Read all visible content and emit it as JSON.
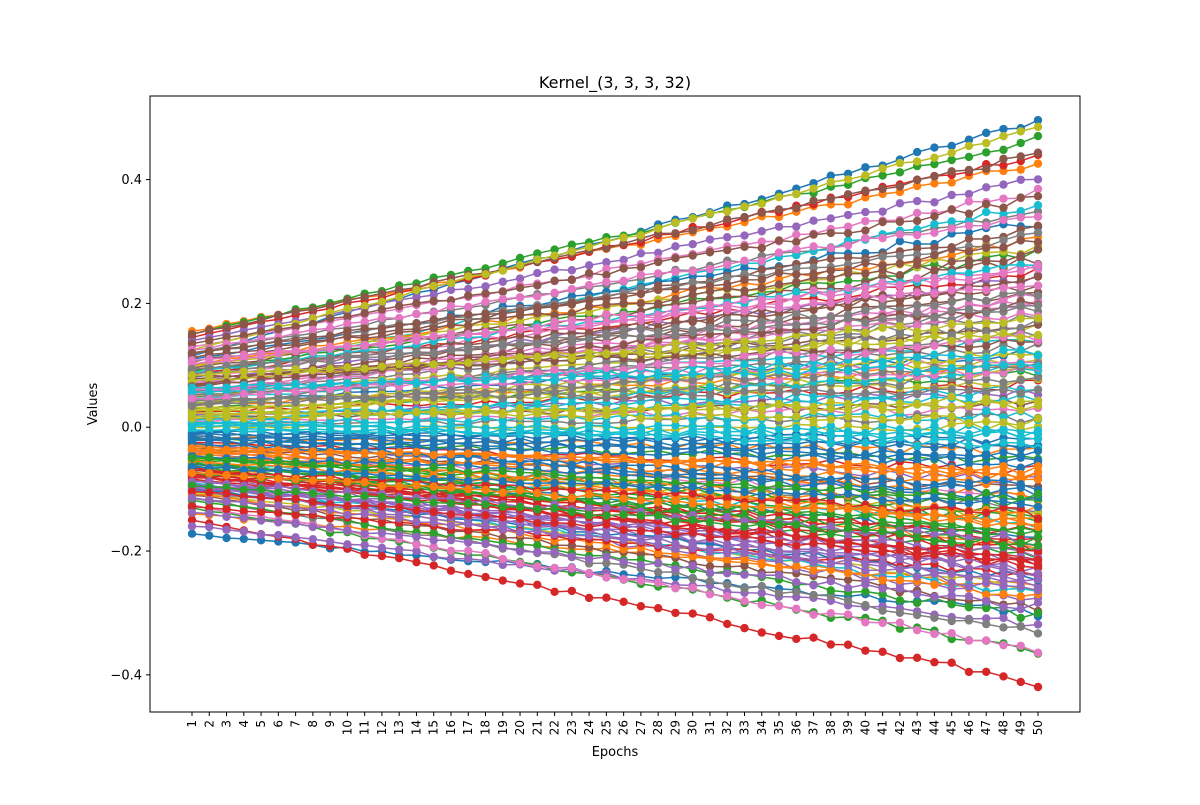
{
  "chart_data": {
    "type": "line",
    "title": "Kernel_(3, 3, 3, 32)",
    "xlabel": "Epochs",
    "ylabel": "Values",
    "x": [
      1,
      2,
      3,
      4,
      5,
      6,
      7,
      8,
      9,
      10,
      11,
      12,
      13,
      14,
      15,
      16,
      17,
      18,
      19,
      20,
      21,
      22,
      23,
      24,
      25,
      26,
      27,
      28,
      29,
      30,
      31,
      32,
      33,
      34,
      35,
      36,
      37,
      38,
      39,
      40,
      41,
      42,
      43,
      44,
      45,
      46,
      47,
      48,
      49,
      50
    ],
    "xlim": [
      1,
      50
    ],
    "ylim": [
      -0.46,
      0.535
    ],
    "yticks": [
      -0.4,
      -0.2,
      0.0,
      0.2,
      0.4
    ],
    "ytick_labels": [
      "−0.4",
      "−0.2",
      "0.0",
      "0.2",
      "0.4"
    ],
    "marker": "circle",
    "grid": false,
    "legend": "none",
    "color_cycle": [
      "#1f77b4",
      "#ff7f0e",
      "#2ca02c",
      "#d62728",
      "#9467bd",
      "#8c564b",
      "#e377c2",
      "#7f7f7f",
      "#bcbd22",
      "#17becf"
    ],
    "series": [
      {
        "start": 0.115,
        "end": 0.495,
        "jitter": 0.004
      },
      {
        "start": 0.155,
        "end": 0.425,
        "jitter": 0.004
      },
      {
        "start": 0.15,
        "end": 0.465,
        "jitter": 0.004
      },
      {
        "start": 0.145,
        "end": 0.44,
        "jitter": 0.004
      },
      {
        "start": 0.14,
        "end": 0.4,
        "jitter": 0.004
      },
      {
        "start": 0.15,
        "end": 0.44,
        "jitter": 0.004
      },
      {
        "start": 0.13,
        "end": 0.38,
        "jitter": 0.004
      },
      {
        "start": 0.12,
        "end": 0.35,
        "jitter": 0.004
      },
      {
        "start": 0.125,
        "end": 0.48,
        "jitter": 0.004
      },
      {
        "start": 0.08,
        "end": 0.36,
        "jitter": 0.004
      },
      {
        "start": -0.172,
        "end": -0.3,
        "jitter": 0.005
      },
      {
        "start": -0.14,
        "end": -0.26,
        "jitter": 0.005
      },
      {
        "start": -0.13,
        "end": -0.36,
        "jitter": 0.005
      },
      {
        "start": -0.15,
        "end": -0.413,
        "jitter": 0.005
      },
      {
        "start": -0.16,
        "end": -0.32,
        "jitter": 0.005
      },
      {
        "start": -0.11,
        "end": -0.29,
        "jitter": 0.005
      },
      {
        "start": -0.125,
        "end": -0.36,
        "jitter": 0.005
      },
      {
        "start": -0.115,
        "end": -0.33,
        "jitter": 0.005
      },
      {
        "start": -0.105,
        "end": -0.26,
        "jitter": 0.005
      },
      {
        "start": -0.09,
        "end": -0.27,
        "jitter": 0.005
      },
      {
        "start": 0.11,
        "end": 0.33,
        "jitter": 0.006
      },
      {
        "start": 0.1,
        "end": 0.3,
        "jitter": 0.006
      },
      {
        "start": 0.09,
        "end": 0.28,
        "jitter": 0.006
      },
      {
        "start": 0.085,
        "end": 0.25,
        "jitter": 0.006
      },
      {
        "start": 0.075,
        "end": 0.24,
        "jitter": 0.006
      },
      {
        "start": 0.07,
        "end": 0.22,
        "jitter": 0.006
      },
      {
        "start": 0.06,
        "end": 0.2,
        "jitter": 0.006
      },
      {
        "start": 0.055,
        "end": 0.18,
        "jitter": 0.006
      },
      {
        "start": 0.05,
        "end": 0.16,
        "jitter": 0.006
      },
      {
        "start": 0.045,
        "end": 0.14,
        "jitter": 0.006
      },
      {
        "start": 0.04,
        "end": 0.12,
        "jitter": 0.006
      },
      {
        "start": 0.035,
        "end": 0.1,
        "jitter": 0.006
      },
      {
        "start": 0.03,
        "end": 0.085,
        "jitter": 0.006
      },
      {
        "start": 0.025,
        "end": 0.07,
        "jitter": 0.006
      },
      {
        "start": 0.02,
        "end": 0.055,
        "jitter": 0.006
      },
      {
        "start": 0.015,
        "end": 0.04,
        "jitter": 0.006
      },
      {
        "start": 0.01,
        "end": 0.03,
        "jitter": 0.006
      },
      {
        "start": 0.005,
        "end": 0.015,
        "jitter": 0.006
      },
      {
        "start": 0.0,
        "end": 0.0,
        "jitter": 0.006
      },
      {
        "start": -0.005,
        "end": -0.01,
        "jitter": 0.006
      },
      {
        "start": -0.01,
        "end": -0.025,
        "jitter": 0.006
      },
      {
        "start": -0.015,
        "end": -0.04,
        "jitter": 0.006
      },
      {
        "start": -0.02,
        "end": -0.055,
        "jitter": 0.006
      },
      {
        "start": -0.025,
        "end": -0.07,
        "jitter": 0.006
      },
      {
        "start": -0.03,
        "end": -0.085,
        "jitter": 0.006
      },
      {
        "start": -0.035,
        "end": -0.1,
        "jitter": 0.006
      },
      {
        "start": -0.04,
        "end": -0.115,
        "jitter": 0.006
      },
      {
        "start": -0.045,
        "end": -0.13,
        "jitter": 0.006
      },
      {
        "start": -0.05,
        "end": -0.145,
        "jitter": 0.006
      },
      {
        "start": -0.055,
        "end": -0.16,
        "jitter": 0.006
      },
      {
        "start": -0.06,
        "end": -0.175,
        "jitter": 0.006
      },
      {
        "start": -0.065,
        "end": -0.19,
        "jitter": 0.006
      },
      {
        "start": -0.07,
        "end": -0.205,
        "jitter": 0.006
      },
      {
        "start": -0.075,
        "end": -0.22,
        "jitter": 0.006
      },
      {
        "start": -0.08,
        "end": -0.235,
        "jitter": 0.006
      },
      {
        "start": 0.095,
        "end": 0.27,
        "jitter": 0.006
      },
      {
        "start": 0.065,
        "end": 0.21,
        "jitter": 0.006
      },
      {
        "start": 0.048,
        "end": 0.15,
        "jitter": 0.006
      },
      {
        "start": 0.028,
        "end": 0.09,
        "jitter": 0.006
      },
      {
        "start": 0.012,
        "end": 0.05,
        "jitter": 0.006
      },
      {
        "start": -0.012,
        "end": -0.035,
        "jitter": 0.006
      },
      {
        "start": -0.028,
        "end": -0.08,
        "jitter": 0.006
      },
      {
        "start": -0.048,
        "end": -0.14,
        "jitter": 0.006
      },
      {
        "start": -0.068,
        "end": -0.2,
        "jitter": 0.006
      },
      {
        "start": -0.085,
        "end": -0.25,
        "jitter": 0.006
      },
      {
        "start": 0.105,
        "end": 0.32,
        "jitter": 0.006
      },
      {
        "start": 0.08,
        "end": 0.26,
        "jitter": 0.006
      },
      {
        "start": 0.058,
        "end": 0.19,
        "jitter": 0.006
      },
      {
        "start": 0.038,
        "end": 0.11,
        "jitter": 0.006
      },
      {
        "start": 0.018,
        "end": 0.06,
        "jitter": 0.006
      },
      {
        "start": -0.018,
        "end": -0.05,
        "jitter": 0.006
      },
      {
        "start": -0.038,
        "end": -0.11,
        "jitter": 0.006
      },
      {
        "start": -0.058,
        "end": -0.17,
        "jitter": 0.006
      },
      {
        "start": -0.078,
        "end": -0.215,
        "jitter": 0.006
      },
      {
        "start": -0.095,
        "end": -0.28,
        "jitter": 0.006
      },
      {
        "start": 0.092,
        "end": 0.23,
        "jitter": 0.006
      },
      {
        "start": 0.072,
        "end": 0.185,
        "jitter": 0.006
      },
      {
        "start": 0.052,
        "end": 0.13,
        "jitter": 0.006
      },
      {
        "start": 0.032,
        "end": 0.075,
        "jitter": 0.006
      },
      {
        "start": 0.008,
        "end": 0.02,
        "jitter": 0.006
      },
      {
        "start": -0.008,
        "end": -0.02,
        "jitter": 0.006
      },
      {
        "start": -0.032,
        "end": -0.075,
        "jitter": 0.006
      },
      {
        "start": -0.052,
        "end": -0.125,
        "jitter": 0.006
      },
      {
        "start": -0.072,
        "end": -0.18,
        "jitter": 0.006
      },
      {
        "start": -0.092,
        "end": -0.23,
        "jitter": 0.006
      },
      {
        "start": 0.135,
        "end": 0.37,
        "jitter": 0.005
      },
      {
        "start": 0.125,
        "end": 0.345,
        "jitter": 0.005
      },
      {
        "start": 0.118,
        "end": 0.31,
        "jitter": 0.005
      },
      {
        "start": 0.098,
        "end": 0.29,
        "jitter": 0.005
      },
      {
        "start": 0.088,
        "end": 0.265,
        "jitter": 0.005
      },
      {
        "start": -0.1,
        "end": -0.245,
        "jitter": 0.005
      },
      {
        "start": -0.108,
        "end": -0.275,
        "jitter": 0.005
      },
      {
        "start": -0.118,
        "end": -0.305,
        "jitter": 0.005
      },
      {
        "start": -0.128,
        "end": -0.24,
        "jitter": 0.005
      },
      {
        "start": -0.138,
        "end": -0.29,
        "jitter": 0.005
      },
      {
        "start": 0.078,
        "end": 0.16,
        "jitter": 0.006
      },
      {
        "start": 0.062,
        "end": 0.11,
        "jitter": 0.006
      },
      {
        "start": 0.042,
        "end": 0.08,
        "jitter": 0.006
      },
      {
        "start": 0.022,
        "end": 0.035,
        "jitter": 0.006
      },
      {
        "start": 0.002,
        "end": -0.005,
        "jitter": 0.006
      },
      {
        "start": -0.022,
        "end": -0.06,
        "jitter": 0.006
      },
      {
        "start": -0.042,
        "end": -0.09,
        "jitter": 0.006
      },
      {
        "start": -0.062,
        "end": -0.15,
        "jitter": 0.006
      },
      {
        "start": -0.082,
        "end": -0.17,
        "jitter": 0.006
      },
      {
        "start": -0.098,
        "end": -0.205,
        "jitter": 0.006
      },
      {
        "start": 0.068,
        "end": 0.24,
        "jitter": 0.006
      },
      {
        "start": 0.054,
        "end": 0.205,
        "jitter": 0.006
      },
      {
        "start": 0.036,
        "end": 0.17,
        "jitter": 0.006
      },
      {
        "start": 0.016,
        "end": 0.125,
        "jitter": 0.006
      },
      {
        "start": 0.004,
        "end": 0.095,
        "jitter": 0.006
      },
      {
        "start": -0.016,
        "end": -0.12,
        "jitter": 0.006
      },
      {
        "start": -0.036,
        "end": -0.16,
        "jitter": 0.006
      },
      {
        "start": -0.056,
        "end": -0.195,
        "jitter": 0.006
      },
      {
        "start": -0.066,
        "end": -0.225,
        "jitter": 0.006
      },
      {
        "start": -0.086,
        "end": -0.265,
        "jitter": 0.006
      },
      {
        "start": 0.082,
        "end": 0.14,
        "jitter": 0.006
      },
      {
        "start": 0.06,
        "end": 0.09,
        "jitter": 0.006
      },
      {
        "start": 0.044,
        "end": 0.06,
        "jitter": 0.006
      },
      {
        "start": 0.026,
        "end": 0.01,
        "jitter": 0.006
      },
      {
        "start": 0.006,
        "end": -0.03,
        "jitter": 0.006
      },
      {
        "start": -0.026,
        "end": -0.095,
        "jitter": 0.006
      },
      {
        "start": -0.044,
        "end": -0.135,
        "jitter": 0.006
      },
      {
        "start": -0.064,
        "end": -0.185,
        "jitter": 0.006
      },
      {
        "start": -0.076,
        "end": -0.195,
        "jitter": 0.006
      },
      {
        "start": -0.096,
        "end": -0.215,
        "jitter": 0.006
      },
      {
        "start": 0.112,
        "end": 0.28,
        "jitter": 0.006
      },
      {
        "start": 0.102,
        "end": 0.255,
        "jitter": 0.006
      },
      {
        "start": 0.086,
        "end": 0.215,
        "jitter": 0.006
      },
      {
        "start": 0.074,
        "end": 0.175,
        "jitter": 0.006
      },
      {
        "start": 0.056,
        "end": 0.12,
        "jitter": 0.006
      },
      {
        "start": -0.046,
        "end": -0.105,
        "jitter": 0.006
      },
      {
        "start": -0.054,
        "end": -0.15,
        "jitter": 0.006
      },
      {
        "start": -0.074,
        "end": -0.165,
        "jitter": 0.006
      },
      {
        "start": -0.084,
        "end": -0.21,
        "jitter": 0.006
      },
      {
        "start": -0.102,
        "end": -0.235,
        "jitter": 0.006
      },
      {
        "start": 0.066,
        "end": 0.2,
        "jitter": 0.006
      },
      {
        "start": 0.046,
        "end": 0.145,
        "jitter": 0.006
      },
      {
        "start": 0.034,
        "end": 0.105,
        "jitter": 0.006
      },
      {
        "start": 0.014,
        "end": 0.045,
        "jitter": 0.006
      },
      {
        "start": -0.004,
        "end": -0.015,
        "jitter": 0.006
      },
      {
        "start": -0.014,
        "end": -0.045,
        "jitter": 0.006
      },
      {
        "start": -0.034,
        "end": -0.07,
        "jitter": 0.006
      },
      {
        "start": -0.05,
        "end": -0.115,
        "jitter": 0.006
      },
      {
        "start": -0.07,
        "end": -0.14,
        "jitter": 0.006
      },
      {
        "start": -0.088,
        "end": -0.185,
        "jitter": 0.006
      },
      {
        "start": 0.12,
        "end": 0.3,
        "jitter": 0.005
      },
      {
        "start": 0.108,
        "end": 0.235,
        "jitter": 0.005
      },
      {
        "start": 0.094,
        "end": 0.195,
        "jitter": 0.005
      },
      {
        "start": 0.084,
        "end": 0.15,
        "jitter": 0.005
      },
      {
        "start": 0.064,
        "end": 0.1,
        "jitter": 0.005
      },
      {
        "start": -0.064,
        "end": -0.125,
        "jitter": 0.005
      },
      {
        "start": -0.074,
        "end": -0.155,
        "jitter": 0.005
      },
      {
        "start": -0.094,
        "end": -0.19,
        "jitter": 0.005
      },
      {
        "start": -0.104,
        "end": -0.22,
        "jitter": 0.005
      },
      {
        "start": -0.114,
        "end": -0.25,
        "jitter": 0.005
      }
    ]
  }
}
